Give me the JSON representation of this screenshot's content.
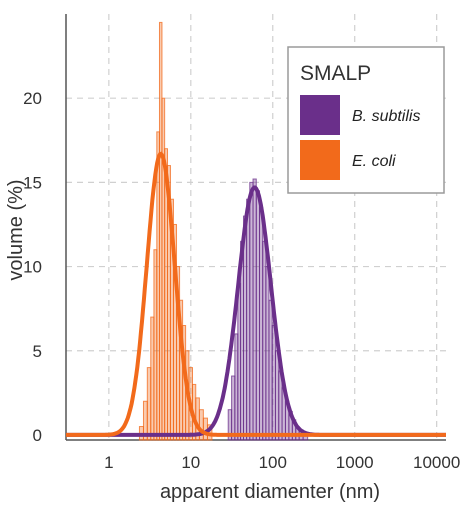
{
  "chart_data": {
    "type": "histogram",
    "x_scale": "log",
    "xlabel": "apparent diamenter (nm)",
    "ylabel": "volume (%)",
    "xlim": [
      0.3,
      13000
    ],
    "ylim": [
      -0.3,
      25
    ],
    "x_ticks": [
      1,
      10,
      100,
      1000,
      10000
    ],
    "x_tick_labels": [
      "1",
      "10",
      "100",
      "1000",
      "10000"
    ],
    "y_ticks": [
      0,
      5,
      10,
      15,
      20
    ],
    "y_tick_labels": [
      "0",
      "5",
      "10",
      "15",
      "20"
    ],
    "grid": true,
    "legend": {
      "title": "SMALP",
      "position": "top-right"
    },
    "series": [
      {
        "name": "B. subtilis",
        "color": "#6a2f8a",
        "fit_peak_x": 60,
        "fit_peak_y": 14.7,
        "bins_x": [
          30,
          33,
          36,
          39,
          42,
          46,
          50,
          55,
          60,
          66,
          72,
          79,
          86,
          94,
          103,
          113,
          124,
          136,
          150,
          165,
          182,
          200,
          220,
          250
        ],
        "bins_y": [
          1.5,
          3.5,
          6,
          9,
          11.5,
          13,
          14,
          15,
          15.2,
          14.5,
          13.5,
          11.5,
          10,
          8,
          6.5,
          5,
          3.8,
          2.8,
          2,
          1.4,
          0.9,
          0.5,
          0.3,
          0.1
        ]
      },
      {
        "name": "E. coli",
        "color": "#f26a1b",
        "fit_peak_x": 4.3,
        "fit_peak_y": 16.7,
        "bins_x": [
          2.5,
          2.8,
          3.1,
          3.4,
          3.7,
          4.0,
          4.3,
          4.6,
          5.0,
          5.4,
          5.9,
          6.4,
          7.0,
          7.6,
          8.3,
          9.0,
          10,
          11,
          12,
          13.5,
          15,
          17
        ],
        "bins_y": [
          0.5,
          2,
          4,
          7,
          11,
          18,
          24.5,
          20,
          17,
          16,
          14,
          12.5,
          10,
          8,
          6.5,
          5,
          4,
          3,
          2.2,
          1.5,
          1,
          0.6
        ]
      }
    ]
  }
}
